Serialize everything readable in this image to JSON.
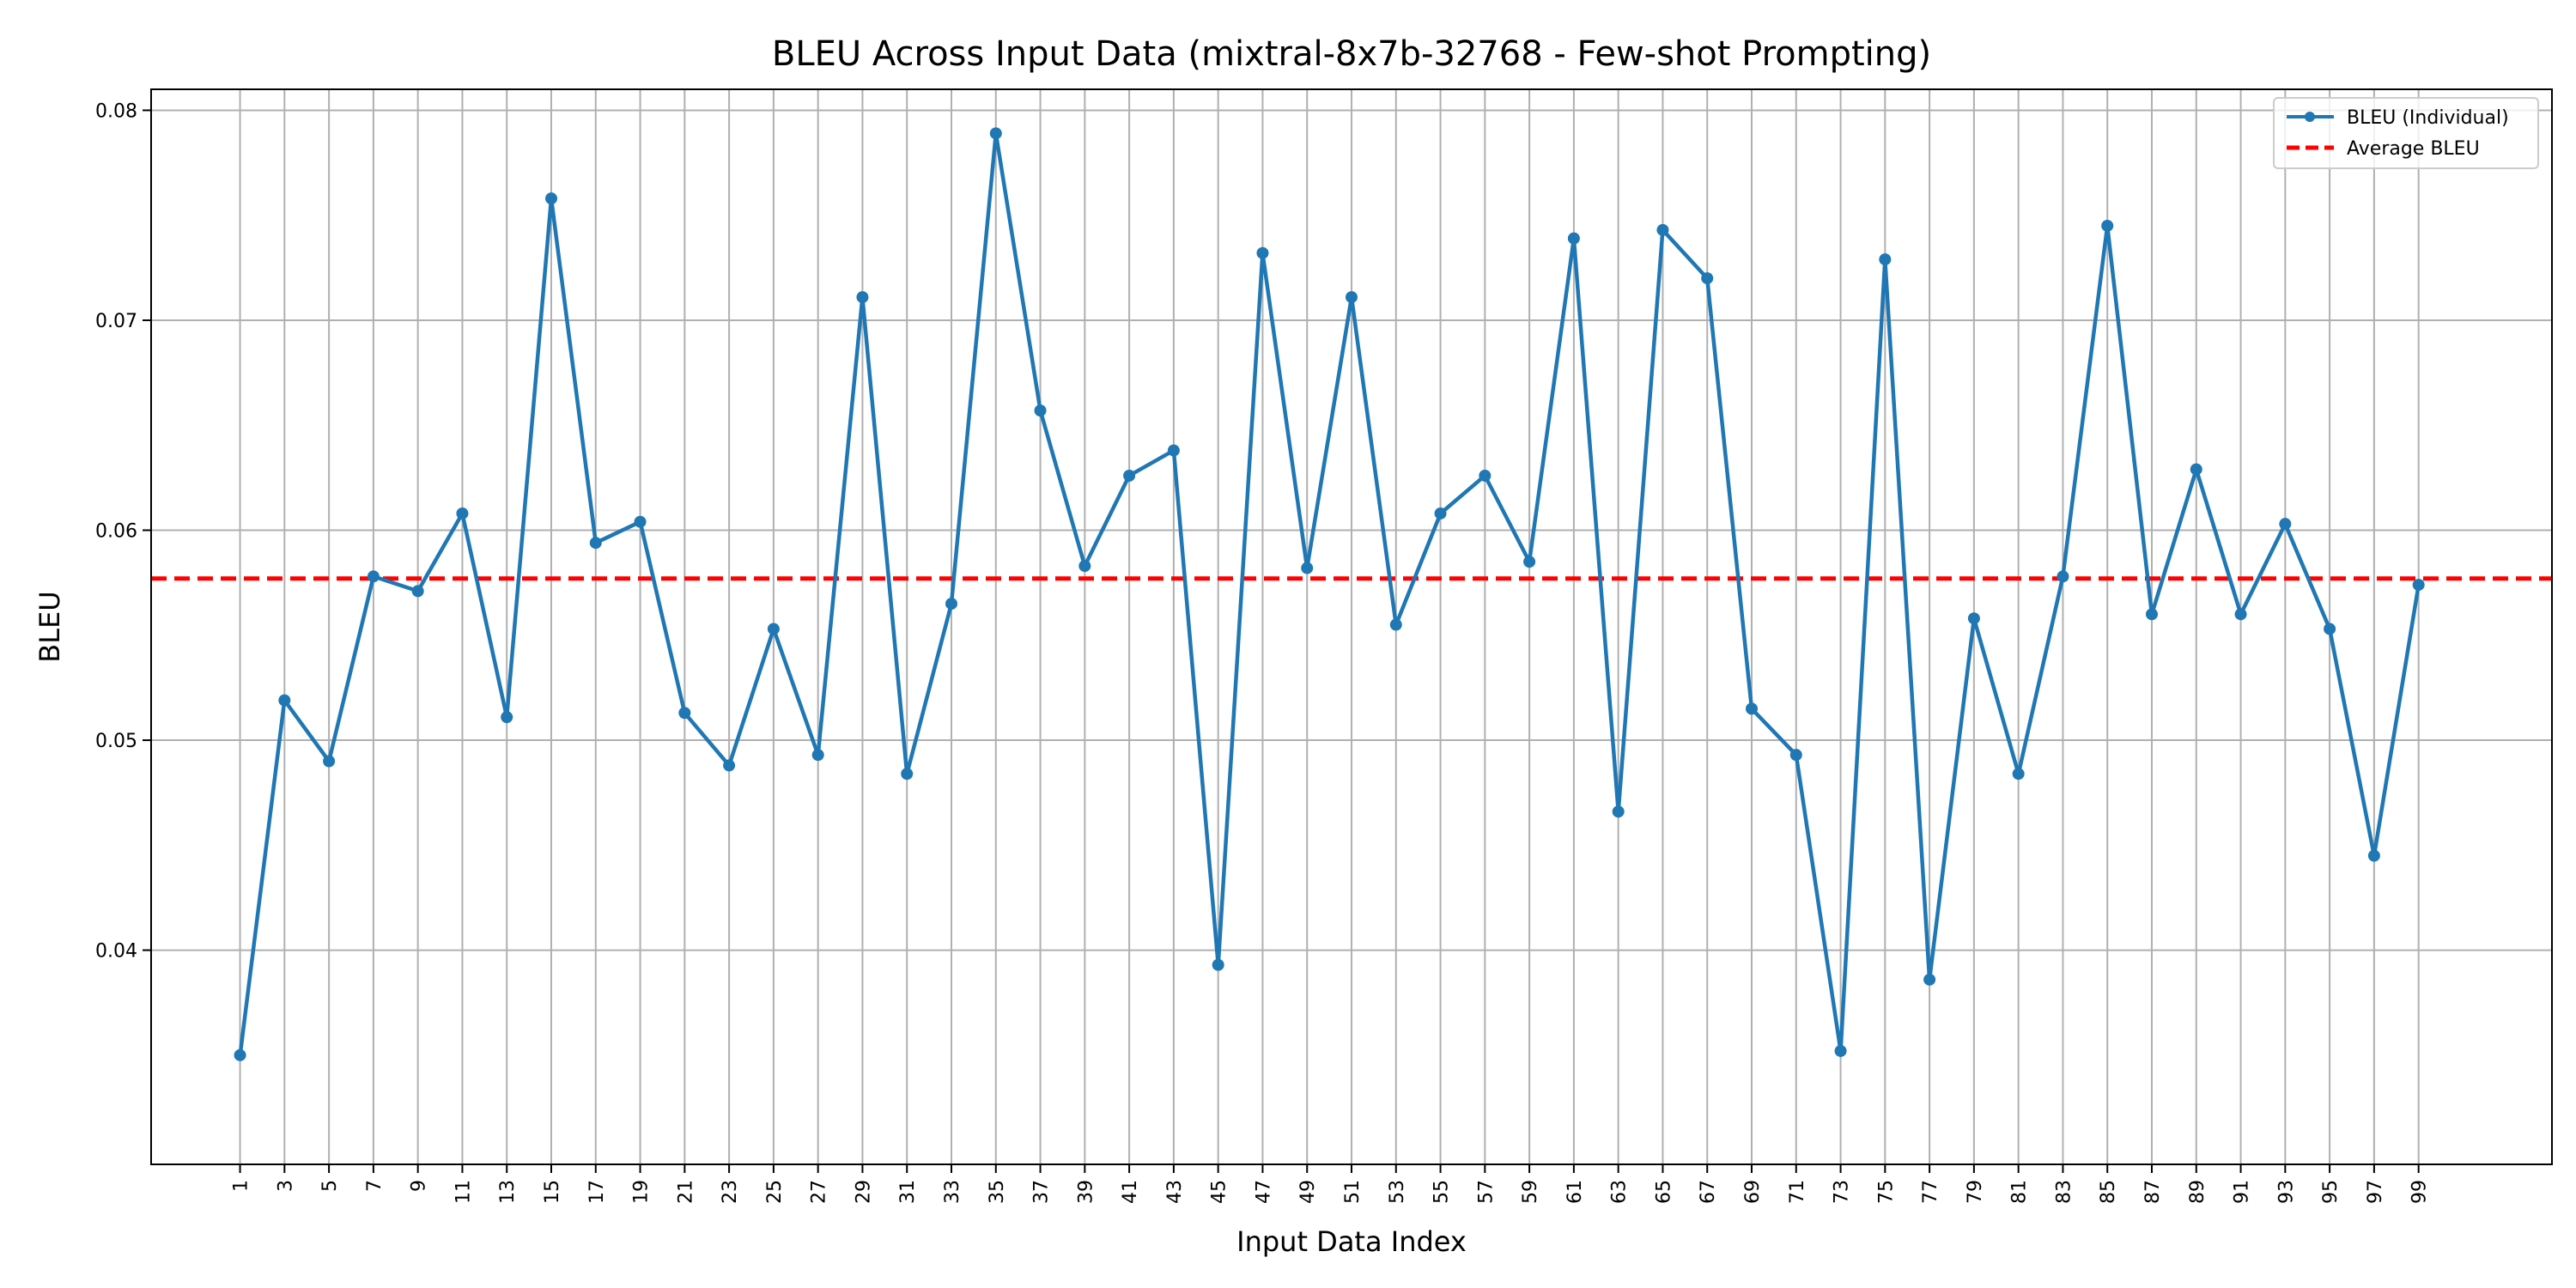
{
  "chart_data": {
    "type": "line",
    "title": "BLEU Across Input Data (mixtral-8x7b-32768 - Few-shot Prompting)",
    "xlabel": "Input Data Index",
    "ylabel": "BLEU",
    "xlim": [
      -3,
      105
    ],
    "ylim": [
      0.0298,
      0.081
    ],
    "x": [
      1,
      3,
      5,
      7,
      9,
      11,
      13,
      15,
      17,
      19,
      21,
      23,
      25,
      27,
      29,
      31,
      33,
      35,
      37,
      39,
      41,
      43,
      45,
      47,
      49,
      51,
      53,
      55,
      57,
      59,
      61,
      63,
      65,
      67,
      69,
      71,
      73,
      75,
      77,
      79,
      81,
      83,
      85,
      87,
      89,
      91,
      93,
      95,
      97,
      99
    ],
    "xtick_labels": [
      "1",
      "3",
      "5",
      "7",
      "9",
      "11",
      "13",
      "15",
      "17",
      "19",
      "21",
      "23",
      "25",
      "27",
      "29",
      "31",
      "33",
      "35",
      "37",
      "39",
      "41",
      "43",
      "45",
      "47",
      "49",
      "51",
      "53",
      "55",
      "57",
      "59",
      "61",
      "63",
      "65",
      "67",
      "69",
      "71",
      "73",
      "75",
      "77",
      "79",
      "81",
      "83",
      "85",
      "87",
      "89",
      "91",
      "93",
      "95",
      "97",
      "99"
    ],
    "yticks": [
      0.04,
      0.05,
      0.06,
      0.07,
      0.08
    ],
    "ytick_labels": [
      "0.04",
      "0.05",
      "0.06",
      "0.07",
      "0.08"
    ],
    "series": [
      {
        "name": "BLEU (Individual)",
        "color": "#1f77b4",
        "style": "solid-with-markers",
        "values": [
          0.035,
          0.0519,
          0.049,
          0.0578,
          0.0571,
          0.0608,
          0.0511,
          0.0758,
          0.0594,
          0.0604,
          0.0513,
          0.0488,
          0.0553,
          0.0493,
          0.0711,
          0.0484,
          0.0565,
          0.0789,
          0.0657,
          0.0583,
          0.0626,
          0.0638,
          0.0393,
          0.0732,
          0.0582,
          0.0711,
          0.0555,
          0.0608,
          0.0626,
          0.0585,
          0.0739,
          0.0466,
          0.0743,
          0.072,
          0.0515,
          0.0493,
          0.0352,
          0.0729,
          0.0386,
          0.0558,
          0.0484,
          0.0578,
          0.0745,
          0.056,
          0.0629,
          0.056,
          0.0603,
          0.0553,
          0.0445,
          0.0574
        ]
      },
      {
        "name": "Average BLEU",
        "color": "#ff0000",
        "style": "dashed",
        "value": 0.0577
      }
    ],
    "legend_placement": "top-right",
    "grid": true
  }
}
